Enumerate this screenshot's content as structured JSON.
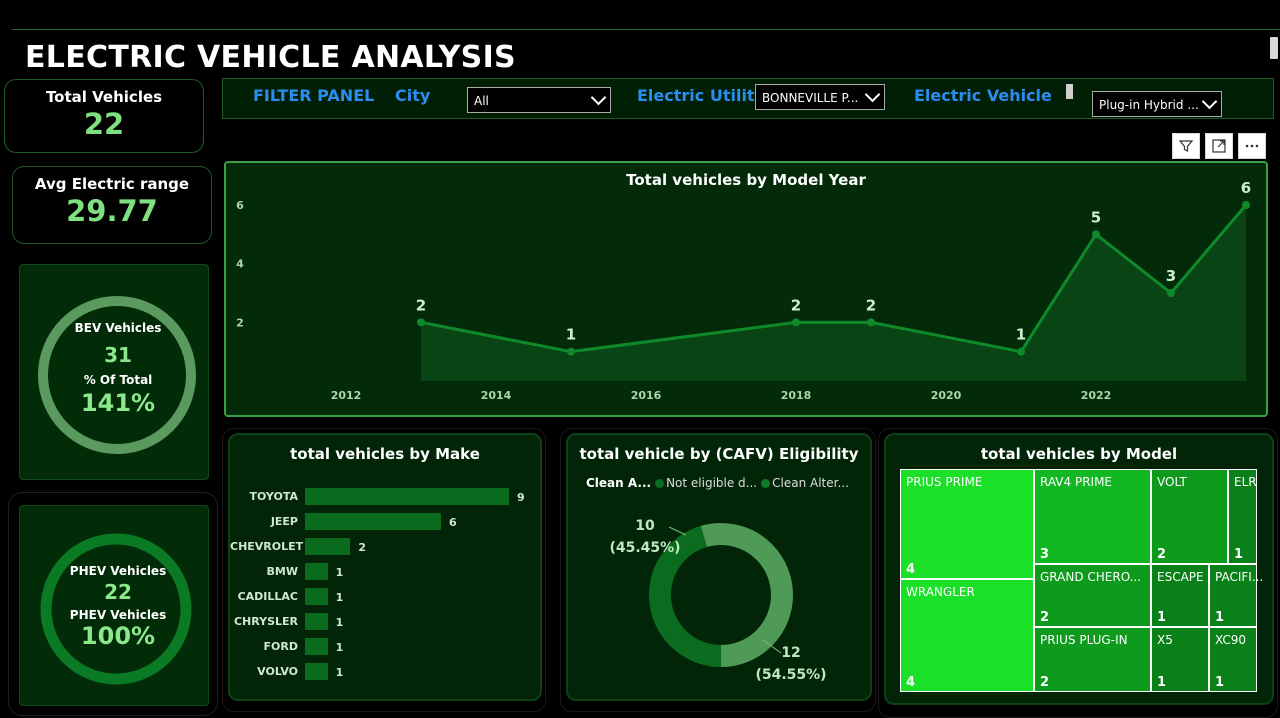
{
  "header": {
    "title": "ELECTRIC VEHICLE ANALYSIS"
  },
  "kpis": {
    "total_vehicles": {
      "label": "Total Vehicles",
      "value": "22"
    },
    "avg_range": {
      "label": "Avg Electric range",
      "value": "29.77"
    }
  },
  "bev": {
    "label": "BEV Vehicles",
    "value": "31",
    "pct_label": "% Of Total",
    "pct": "141%"
  },
  "phev": {
    "label": "PHEV Vehicles",
    "value": "22",
    "pct_label": "PHEV Vehicles",
    "pct": "100%"
  },
  "filters": {
    "panel_label": "FILTER PANEL",
    "city_label": "City",
    "city_value": "All",
    "utility_label": "Electric Utility",
    "utility_value": "BONNEVILLE P...",
    "ev_label": "Electric Vehicle",
    "ev_value": "Plug-in Hybrid ..."
  },
  "visual_toolbar": {
    "filter_icon": "filter-icon",
    "focus_icon": "focus-mode-icon",
    "more_icon": "more-options-icon"
  },
  "colors": {
    "accent_green": "#7ee07e",
    "filter_blue": "#2a8ef0",
    "bar_green": "#0a6a1e",
    "treemap_bright": "#1be62a"
  },
  "chart_data": [
    {
      "type": "area",
      "title": "Total vehicles by Model Year",
      "x": [
        2013,
        2015,
        2018,
        2019,
        2021,
        2022,
        2023,
        2024
      ],
      "values": [
        2,
        1,
        2,
        2,
        1,
        5,
        3,
        6
      ],
      "data_labels": [
        "2",
        "1",
        "2",
        "2",
        "1",
        "5",
        "3",
        "6"
      ],
      "x_ticks": [
        "2012",
        "2014",
        "2016",
        "2018",
        "2020",
        "2022"
      ],
      "y_ticks": [
        "2",
        "4",
        "6"
      ],
      "xlim": [
        2012,
        2024
      ],
      "ylim": [
        0,
        6
      ],
      "grid": false
    },
    {
      "type": "bar",
      "title": "total vehicles by Make",
      "categories": [
        "TOYOTA",
        "JEEP",
        "CHEVROLET",
        "BMW",
        "CADILLAC",
        "CHRYSLER",
        "FORD",
        "VOLVO"
      ],
      "values": [
        9,
        6,
        2,
        1,
        1,
        1,
        1,
        1
      ]
    },
    {
      "type": "pie",
      "title": "total vehicle by (CAFV) Eligibility",
      "legend_title": "Clean A...",
      "legend": [
        "Not eligible d...",
        "Clean Alter..."
      ],
      "values": [
        10,
        12
      ],
      "labels": [
        "10",
        "12"
      ],
      "percents": [
        "(45.45%)",
        "(54.55%)"
      ],
      "colors": [
        "#0b6b1f",
        "#4f9a57"
      ]
    },
    {
      "type": "heatmap",
      "title": "total vehicles by Model",
      "categories": [
        "PRIUS PRIME",
        "WRANGLER",
        "RAV4 PRIME",
        "GRAND CHERO...",
        "PRIUS PLUG-IN",
        "VOLT",
        "ESCAPE",
        "X5",
        "ELR",
        "PACIFI...",
        "XC90"
      ],
      "values": [
        4,
        4,
        3,
        2,
        2,
        2,
        1,
        1,
        1,
        1,
        1
      ]
    }
  ]
}
